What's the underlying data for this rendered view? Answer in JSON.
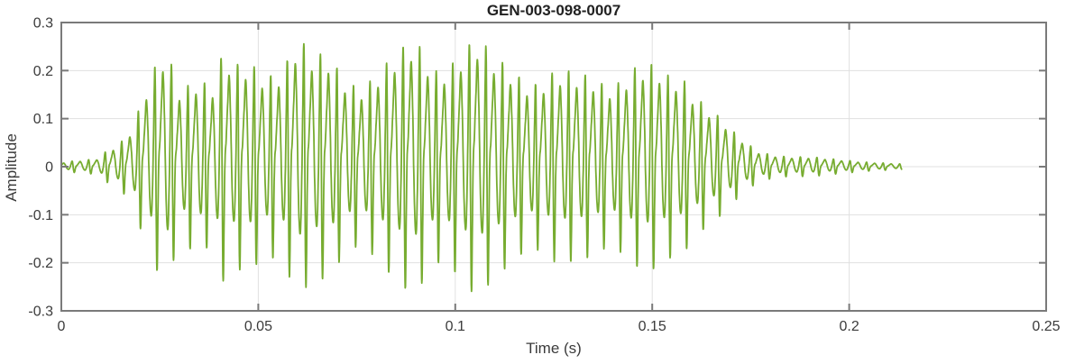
{
  "chart_data": {
    "type": "line",
    "title": "GEN-003-098-0007",
    "xlabel": "Time (s)",
    "ylabel": "Amplitude",
    "xlim": [
      0,
      0.25
    ],
    "ylim": [
      -0.3,
      0.3
    ],
    "xticks": [
      0,
      0.05,
      0.1,
      0.15,
      0.2,
      0.25
    ],
    "xtick_labels": [
      "0",
      "0.05",
      "0.1",
      "0.15",
      "0.2",
      "0.25"
    ],
    "yticks": [
      -0.3,
      -0.2,
      -0.1,
      0,
      0.1,
      0.2,
      0.3
    ],
    "ytick_labels": [
      "-0.3",
      "-0.2",
      "-0.1",
      "0",
      "0.1",
      "0.2",
      "0.3"
    ],
    "grid": true,
    "legend": "none",
    "background_color": "#ffffff",
    "axis_color": "#7a7a7a",
    "grid_color": "#e0e0e0",
    "tick_label_color": "#3b3b3b",
    "line_color": "#77ac30",
    "line_width": 1.8,
    "series": [
      {
        "name": "GEN-003-098-0007 waveform",
        "signal": {
          "kind": "speech_like_waveform",
          "duration_s": 0.2133,
          "fundamental_hz": 238,
          "peak_amplitude": 0.26,
          "clip_level": 0.272,
          "harmonic_amps": [
            0.5,
            1.0,
            0.62,
            0.4,
            0.25,
            0.14,
            0.08
          ],
          "harmonic_phases": [
            0.9,
            0.2,
            2.6,
            4.1,
            5.5,
            0.8,
            2.3
          ],
          "amplitude_modulation": [
            [
              47,
              0.1,
              1.2
            ],
            [
              21,
              0.07,
              0.5
            ],
            [
              9,
              0.05,
              2.1
            ]
          ],
          "envelope": [
            [
              0.0,
              0.007
            ],
            [
              0.003,
              0.01
            ],
            [
              0.006,
              0.012
            ],
            [
              0.009,
              0.016
            ],
            [
              0.011,
              0.03
            ],
            [
              0.014,
              0.045
            ],
            [
              0.0165,
              0.06
            ],
            [
              0.0185,
              0.085
            ],
            [
              0.0205,
              0.13
            ],
            [
              0.023,
              0.185
            ],
            [
              0.027,
              0.26
            ],
            [
              0.0295,
              0.19
            ],
            [
              0.032,
              0.21
            ],
            [
              0.035,
              0.23
            ],
            [
              0.038,
              0.18
            ],
            [
              0.041,
              0.24
            ],
            [
              0.044,
              0.2
            ],
            [
              0.048,
              0.21
            ],
            [
              0.052,
              0.2
            ],
            [
              0.056,
              0.215
            ],
            [
              0.06,
              0.258
            ],
            [
              0.064,
              0.21
            ],
            [
              0.068,
              0.22
            ],
            [
              0.072,
              0.2
            ],
            [
              0.076,
              0.195
            ],
            [
              0.08,
              0.21
            ],
            [
              0.085,
              0.22
            ],
            [
              0.09,
              0.245
            ],
            [
              0.095,
              0.2
            ],
            [
              0.1,
              0.21
            ],
            [
              0.105,
              0.225
            ],
            [
              0.11,
              0.195
            ],
            [
              0.115,
              0.2
            ],
            [
              0.12,
              0.19
            ],
            [
              0.125,
              0.2
            ],
            [
              0.13,
              0.19
            ],
            [
              0.135,
              0.2
            ],
            [
              0.14,
              0.19
            ],
            [
              0.145,
              0.2
            ],
            [
              0.15,
              0.19
            ],
            [
              0.154,
              0.18
            ],
            [
              0.158,
              0.195
            ],
            [
              0.162,
              0.16
            ],
            [
              0.165,
              0.13
            ],
            [
              0.168,
              0.1
            ],
            [
              0.171,
              0.07
            ],
            [
              0.174,
              0.05
            ],
            [
              0.177,
              0.035
            ],
            [
              0.181,
              0.028
            ],
            [
              0.185,
              0.022
            ],
            [
              0.19,
              0.018
            ],
            [
              0.195,
              0.014
            ],
            [
              0.2,
              0.012
            ],
            [
              0.205,
              0.009
            ],
            [
              0.209,
              0.007
            ],
            [
              0.2133,
              0.005
            ]
          ]
        }
      }
    ]
  }
}
